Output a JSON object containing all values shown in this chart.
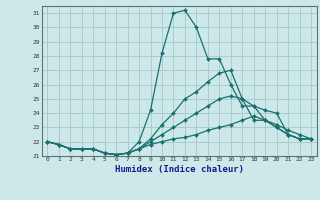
{
  "xlabel": "Humidex (Indice chaleur)",
  "background_color": "#cce8e8",
  "grid_color": "#aacccc",
  "line_color": "#1a7070",
  "xlim": [
    -0.5,
    23.5
  ],
  "ylim": [
    21,
    31.5
  ],
  "xticks": [
    0,
    1,
    2,
    3,
    4,
    5,
    6,
    7,
    8,
    9,
    10,
    11,
    12,
    13,
    14,
    15,
    16,
    17,
    18,
    19,
    20,
    21,
    22,
    23
  ],
  "yticks": [
    21,
    22,
    23,
    24,
    25,
    26,
    27,
    28,
    29,
    30,
    31
  ],
  "series": [
    [
      22.0,
      21.8,
      21.5,
      21.5,
      21.5,
      21.2,
      21.1,
      21.2,
      22.0,
      24.2,
      28.2,
      31.0,
      31.2,
      30.0,
      27.8,
      27.8,
      26.0,
      24.5,
      24.5,
      24.2,
      24.0,
      22.5,
      22.2,
      22.2
    ],
    [
      22.0,
      21.8,
      21.5,
      21.5,
      21.5,
      21.2,
      21.1,
      21.2,
      21.5,
      22.2,
      23.2,
      24.0,
      25.0,
      25.5,
      26.2,
      26.8,
      27.0,
      25.0,
      23.5,
      23.5,
      23.2,
      22.8,
      22.5,
      22.2
    ],
    [
      22.0,
      21.8,
      21.5,
      21.5,
      21.5,
      21.2,
      21.1,
      21.2,
      21.5,
      22.0,
      22.5,
      23.0,
      23.5,
      24.0,
      24.5,
      25.0,
      25.2,
      25.0,
      24.5,
      23.5,
      23.0,
      22.5,
      22.2,
      22.2
    ],
    [
      22.0,
      21.8,
      21.5,
      21.5,
      21.5,
      21.2,
      21.1,
      21.2,
      21.5,
      21.8,
      22.0,
      22.2,
      22.3,
      22.5,
      22.8,
      23.0,
      23.2,
      23.5,
      23.8,
      23.5,
      23.0,
      22.5,
      22.2,
      22.2
    ]
  ]
}
